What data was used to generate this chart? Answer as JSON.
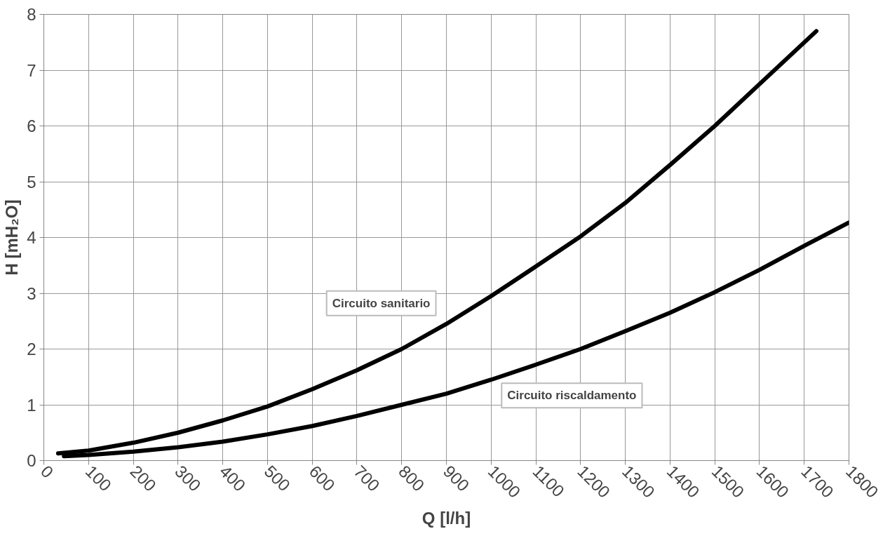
{
  "chart_data": {
    "type": "line",
    "xlabel": "Q [l/h]",
    "ylabel": "H [mH₂O]",
    "xlim": [
      0,
      1800
    ],
    "ylim": [
      0,
      8
    ],
    "xticks": [
      0,
      100,
      200,
      300,
      400,
      500,
      600,
      700,
      800,
      900,
      1000,
      1100,
      1200,
      1300,
      1400,
      1500,
      1600,
      1700,
      1800
    ],
    "yticks": [
      0,
      1,
      2,
      3,
      4,
      5,
      6,
      7,
      8
    ],
    "grid": true,
    "marker": "none",
    "line_style": "solid",
    "series": [
      {
        "name": "Circuito sanitario",
        "color": "#000000",
        "x": [
          32,
          100,
          200,
          300,
          400,
          500,
          600,
          700,
          800,
          900,
          1000,
          1100,
          1200,
          1300,
          1400,
          1500,
          1600,
          1727
        ],
        "values": [
          0.13,
          0.18,
          0.32,
          0.5,
          0.72,
          0.97,
          1.28,
          1.62,
          2.0,
          2.45,
          2.95,
          3.48,
          4.02,
          4.62,
          5.3,
          6.0,
          6.75,
          7.7
        ]
      },
      {
        "name": "Circuito riscaldamento",
        "color": "#000000",
        "x": [
          45,
          100,
          200,
          300,
          400,
          500,
          600,
          700,
          800,
          900,
          1000,
          1100,
          1200,
          1300,
          1400,
          1500,
          1600,
          1700,
          1800
        ],
        "values": [
          0.08,
          0.1,
          0.16,
          0.24,
          0.34,
          0.47,
          0.62,
          0.8,
          1.0,
          1.2,
          1.45,
          1.72,
          2.0,
          2.32,
          2.65,
          3.02,
          3.42,
          3.85,
          4.27
        ]
      }
    ]
  }
}
